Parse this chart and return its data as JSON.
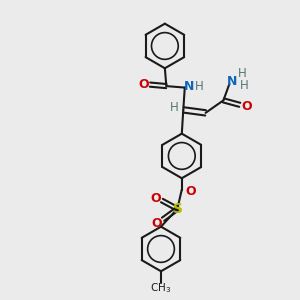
{
  "background_color": "#ebebeb",
  "line_color": "#1a1a1a",
  "bond_width": 1.5,
  "fig_size": [
    3.0,
    3.0
  ],
  "dpi": 100,
  "atoms": {
    "O_red": "#cc0000",
    "N_blue": "#1166bb",
    "S_yellow": "#bbbb00",
    "H_gray": "#557777",
    "C_black": "#1a1a1a"
  },
  "layout": {
    "xlim": [
      0,
      10
    ],
    "ylim": [
      0,
      10
    ]
  }
}
